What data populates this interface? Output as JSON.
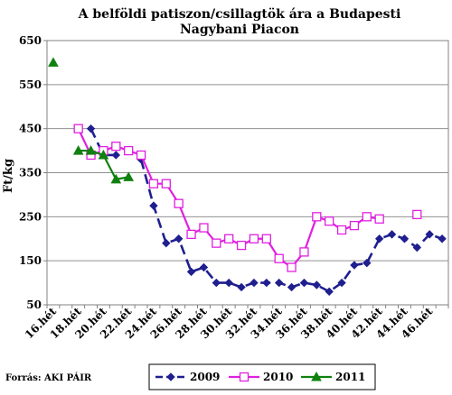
{
  "chart_data": {
    "type": "line",
    "title_line1": "A belföldi patiszon/csillagtök ára a Budapesti",
    "title_line2": "Nagybani Piacon",
    "ylabel": "Ft/kg",
    "xlabel": "",
    "ylim": [
      50,
      650
    ],
    "yticks": [
      50,
      150,
      250,
      350,
      450,
      550,
      650
    ],
    "x_start_week": 16,
    "x_end_week": 47,
    "x_tick_labels": [
      "16.hét",
      "18.hét",
      "20.hét",
      "22.hét",
      "24.hét",
      "26.hét",
      "28.hét",
      "30.hét",
      "32.hét",
      "34.hét",
      "36.hét",
      "38.hét",
      "40.hét",
      "42.hét",
      "44.hét",
      "46.hét"
    ],
    "grid": "horizontal",
    "legend_position": "bottom",
    "source": "Forrás: AKI PÁIR",
    "series": [
      {
        "name": "2009",
        "color": "#1f1f8f",
        "marker": "diamond",
        "dash": "dashed",
        "weeks": [
          19,
          20,
          21,
          22,
          23,
          24,
          25,
          26,
          27,
          28,
          29,
          30,
          31,
          32,
          33,
          34,
          35,
          36,
          37,
          38,
          39,
          40,
          41,
          42,
          43,
          44,
          45,
          46,
          47
        ],
        "values": [
          450,
          390,
          390,
          null,
          380,
          275,
          190,
          200,
          125,
          135,
          100,
          100,
          90,
          100,
          100,
          100,
          90,
          100,
          95,
          80,
          100,
          140,
          145,
          200,
          210,
          200,
          180,
          210,
          200
        ]
      },
      {
        "name": "2010",
        "color": "#e020e0",
        "marker": "square",
        "dash": "solid",
        "weeks": [
          18,
          19,
          20,
          21,
          22,
          23,
          24,
          25,
          26,
          27,
          28,
          29,
          30,
          31,
          32,
          33,
          34,
          35,
          36,
          37,
          38,
          39,
          40,
          41,
          42,
          43,
          44,
          45
        ],
        "values": [
          450,
          390,
          400,
          410,
          400,
          390,
          325,
          325,
          280,
          210,
          225,
          190,
          200,
          185,
          200,
          200,
          155,
          135,
          170,
          250,
          240,
          220,
          230,
          250,
          245,
          null,
          null,
          255
        ]
      },
      {
        "name": "2011",
        "color": "#108010",
        "marker": "triangle",
        "dash": "solid",
        "weeks": [
          16,
          17,
          18,
          19,
          20,
          21,
          22
        ],
        "values": [
          600,
          null,
          400,
          400,
          390,
          335,
          340
        ]
      }
    ]
  }
}
